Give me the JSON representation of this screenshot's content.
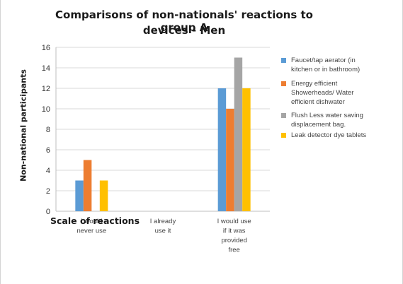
{
  "chart_data": {
    "type": "bar",
    "title_line1": "Comparisons of non-nationals' reactions to group A",
    "title_line2": "devices - Men",
    "ylabel": "Non-national participants",
    "xlabel": "Scale of reactions",
    "ylim": [
      0,
      16
    ],
    "yticks": [
      "0",
      "2",
      "4",
      "6",
      "8",
      "10",
      "12",
      "14",
      "16"
    ],
    "categories": [
      [
        "I would",
        "never use"
      ],
      [
        "I already",
        "use it"
      ],
      [
        "I would use",
        "if it was",
        "provided",
        "free"
      ]
    ],
    "series": [
      {
        "name_lines": [
          "Faucet/tap aerator (in",
          "kitchen or in bathroom)"
        ],
        "color": "#5b9bd5",
        "values": [
          3,
          0,
          12
        ]
      },
      {
        "name_lines": [
          "Energy efficient",
          "Showerheads/ Water",
          "efficient dishwater"
        ],
        "color": "#ed7d31",
        "values": [
          5,
          0,
          10
        ]
      },
      {
        "name_lines": [
          "Flush Less water saving",
          "displacement bag."
        ],
        "color": "#a5a5a5",
        "values": [
          0,
          0,
          15
        ]
      },
      {
        "name_lines": [
          "Leak detector dye tablets"
        ],
        "color": "#ffc000",
        "values": [
          3,
          0,
          12
        ]
      }
    ],
    "grid": true,
    "legend_position": "right"
  }
}
